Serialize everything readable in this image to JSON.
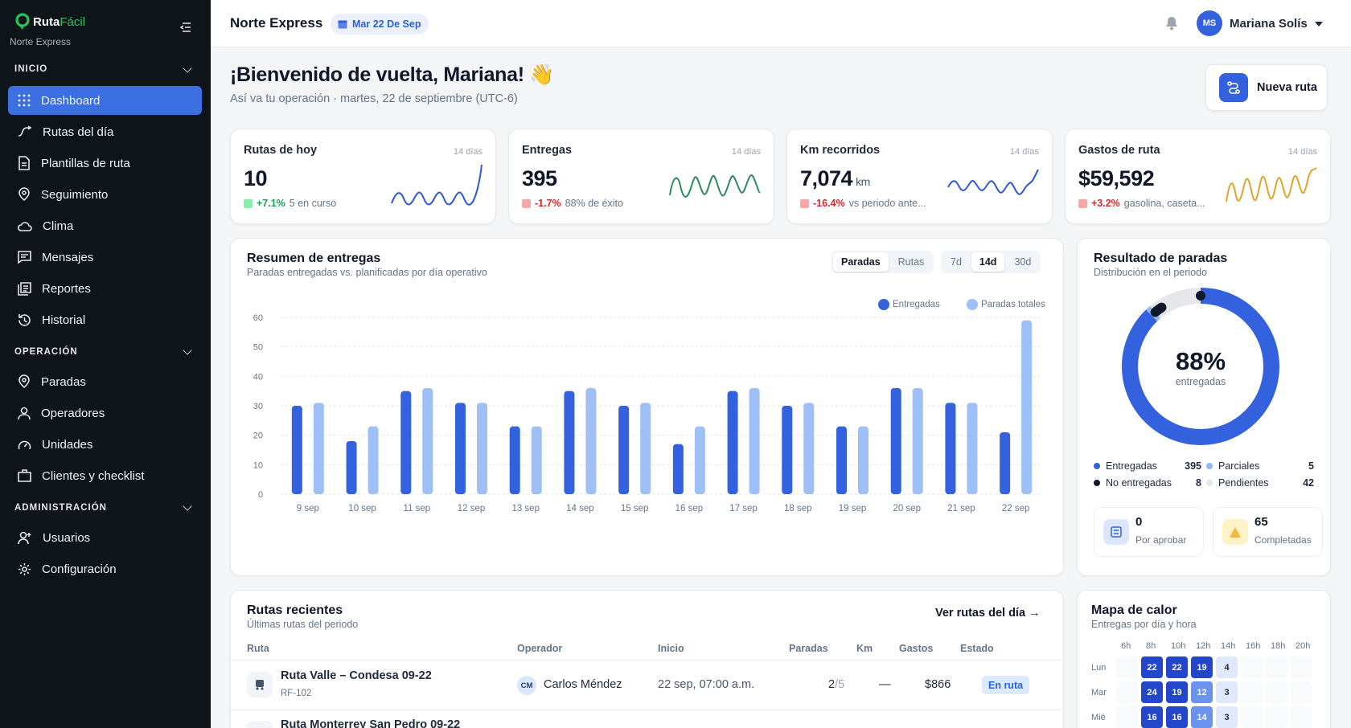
{
  "sidebar": {
    "brand": {
      "name_a": "Ruta",
      "name_b": "Fácil",
      "company": "Norte Express"
    },
    "sections": [
      {
        "title": "INICIO"
      },
      {
        "title": "OPERACIÓN"
      },
      {
        "title": "ADMINISTRACIÓN"
      }
    ],
    "items": [
      {
        "label": "Dashboard",
        "icon": "grid-icon"
      },
      {
        "label": "Rutas del día",
        "icon": "route-arrow-icon"
      },
      {
        "label": "Plantillas de ruta",
        "icon": "document-icon"
      },
      {
        "label": "Seguimiento",
        "icon": "location-pin-icon"
      },
      {
        "label": "Clima",
        "icon": "cloud-icon"
      },
      {
        "label": "Mensajes",
        "icon": "message-icon"
      },
      {
        "label": "Reportes",
        "icon": "report-icon"
      },
      {
        "label": "Historial",
        "icon": "history-icon"
      },
      {
        "label": "Paradas",
        "icon": "map-pin-icon"
      },
      {
        "label": "Operadores",
        "icon": "user-icon"
      },
      {
        "label": "Unidades",
        "icon": "gauge-icon"
      },
      {
        "label": "Clientes y checklist",
        "icon": "briefcase-icon"
      },
      {
        "label": "Usuarios",
        "icon": "user-plus-icon"
      },
      {
        "label": "Configuración",
        "icon": "gear-icon"
      }
    ]
  },
  "topbar": {
    "company": "Norte Express",
    "date_chip": "Mar 22 De Sep",
    "user_initials": "MS",
    "user_name": "Mariana Solís"
  },
  "header": {
    "welcome": "¡Bienvenido de vuelta, Mariana! 👋",
    "subtitle": "Así va tu operación · martes, 22 de septiembre (UTC-6)",
    "new_route": "Nueva ruta"
  },
  "kpis": [
    {
      "title": "Rutas de hoy",
      "period": "14 días",
      "value": "10",
      "unit": "",
      "change": "+7.1%",
      "direction": "up",
      "note": "5 en curso",
      "spark_color": "#2f56d6"
    },
    {
      "title": "Entregas",
      "period": "14 días",
      "value": "395",
      "unit": "",
      "change": "-1.7%",
      "direction": "down",
      "note": "88% de éxito",
      "spark_color": "#2f8a5a"
    },
    {
      "title": "Km recorridos",
      "period": "14 días",
      "value": "7,074",
      "unit": "km",
      "change": "-16.4%",
      "direction": "down",
      "note": "vs periodo ante...",
      "spark_color": "#2f56d6"
    },
    {
      "title": "Gastos de ruta",
      "period": "14 días",
      "value": "$59,592",
      "unit": "",
      "change": "+3.2%",
      "direction": "down",
      "note": "gasolina, caseta...",
      "spark_color": "#e3a32a"
    }
  ],
  "summary": {
    "title": "Resumen de entregas",
    "subtitle": "Paradas entregadas vs. planificadas por día operativo",
    "toggle": [
      "Paradas",
      "Rutas"
    ],
    "ranges": [
      "7d",
      "14d",
      "30d"
    ],
    "legend": [
      "Entregadas",
      "Paradas totales"
    ]
  },
  "chart_data": {
    "type": "bar",
    "categories": [
      "9 sep",
      "10 sep",
      "11 sep",
      "12 sep",
      "13 sep",
      "14 sep",
      "15 sep",
      "16 sep",
      "17 sep",
      "18 sep",
      "19 sep",
      "20 sep",
      "21 sep",
      "22 sep"
    ],
    "series": [
      {
        "name": "Entregadas",
        "color": "#3461dd",
        "values": [
          30,
          18,
          35,
          31,
          23,
          35,
          30,
          17,
          35,
          30,
          23,
          36,
          31,
          21
        ]
      },
      {
        "name": "Paradas totales",
        "color": "#9ec0f7",
        "values": [
          31,
          23,
          36,
          31,
          23,
          36,
          31,
          23,
          36,
          31,
          23,
          36,
          31,
          59
        ]
      }
    ],
    "yticks": [
      "0",
      "10",
      "20",
      "30",
      "40",
      "50",
      "60"
    ],
    "ylim": [
      0,
      60
    ],
    "grid": true,
    "legend_position": "top-right"
  },
  "stops": {
    "title": "Resultado de paradas",
    "subtitle": "Distribución en el periodo",
    "center_value": "88%",
    "center_label": "entregadas",
    "breakdown": [
      {
        "label": "Entregadas",
        "value": "395",
        "color": "#3461dd"
      },
      {
        "label": "Parciales",
        "value": "5",
        "color": "#93b8f6"
      },
      {
        "label": "No entregadas",
        "value": "8",
        "color": "#0f172a"
      },
      {
        "label": "Pendientes",
        "value": "42",
        "color": "#e5e7eb"
      }
    ],
    "pending_approval": {
      "value": "0",
      "label": "Por aprobar"
    },
    "completed": {
      "value": "65",
      "label": "Completadas"
    }
  },
  "routes": {
    "title": "Rutas recientes",
    "subtitle": "Últimas rutas del periodo",
    "link": "Ver rutas del día →",
    "columns": [
      "Ruta",
      "Operador",
      "Inicio",
      "Paradas",
      "Km",
      "Gastos",
      "Estado"
    ],
    "rows": [
      {
        "name": "Ruta Valle – Condesa 09-22",
        "code": "RF-102",
        "op_initials": "CM",
        "operator": "Carlos Méndez",
        "start": "22 sep, 07:00 a.m.",
        "stops_done": "2",
        "stops_total": "/5",
        "km": "—",
        "cost": "$866",
        "status": "En ruta"
      },
      {
        "name": "Ruta Monterrey San Pedro 09-22"
      }
    ]
  },
  "heatmap": {
    "title": "Mapa de calor",
    "subtitle": "Entregas por día y hora",
    "hours": [
      "6h",
      "8h",
      "10h",
      "12h",
      "14h",
      "16h",
      "18h",
      "20h"
    ],
    "days": [
      {
        "label": "Lun",
        "cells": [
          "",
          "22",
          "22",
          "19",
          "4",
          "",
          "",
          ""
        ]
      },
      {
        "label": "Mar",
        "cells": [
          "",
          "24",
          "19",
          "12",
          "3",
          "",
          "",
          ""
        ]
      },
      {
        "label": "Mié",
        "cells": [
          "",
          "16",
          "16",
          "14",
          "3",
          "",
          "",
          ""
        ]
      }
    ]
  }
}
